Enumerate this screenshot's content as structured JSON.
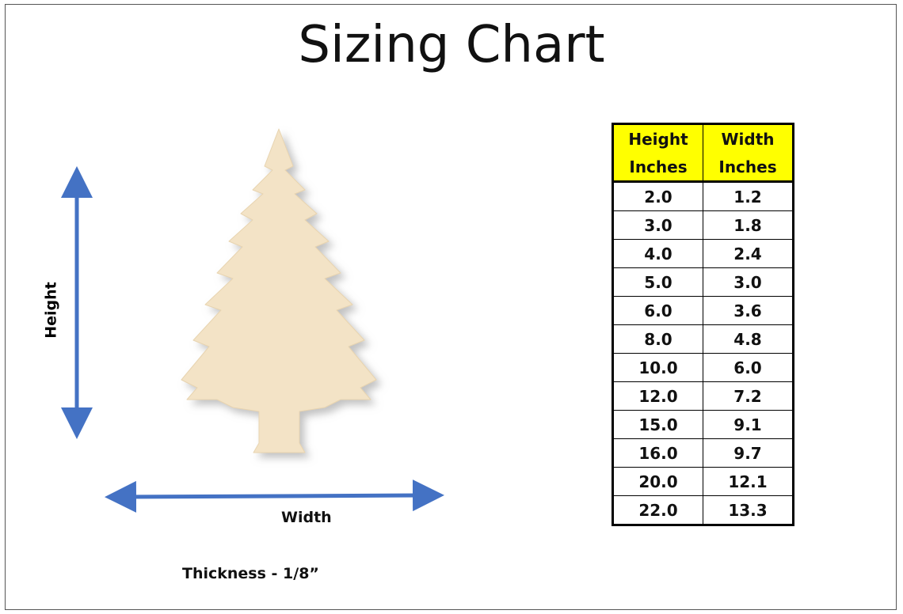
{
  "header": {
    "title": "Sizing Chart"
  },
  "diagram": {
    "height_label": "Height",
    "width_label": "Width",
    "thickness": "Thickness - 1/8”"
  },
  "table": {
    "headers": [
      [
        "Height",
        "Inches"
      ],
      [
        "Width",
        "Inches"
      ]
    ],
    "rows": [
      [
        "2.0",
        "1.2"
      ],
      [
        "3.0",
        "1.8"
      ],
      [
        "4.0",
        "2.4"
      ],
      [
        "5.0",
        "3.0"
      ],
      [
        "6.0",
        "3.6"
      ],
      [
        "8.0",
        "4.8"
      ],
      [
        "10.0",
        "6.0"
      ],
      [
        "12.0",
        "7.2"
      ],
      [
        "15.0",
        "9.1"
      ],
      [
        "16.0",
        "9.7"
      ],
      [
        "20.0",
        "12.1"
      ],
      [
        "22.0",
        "13.3"
      ]
    ]
  }
}
